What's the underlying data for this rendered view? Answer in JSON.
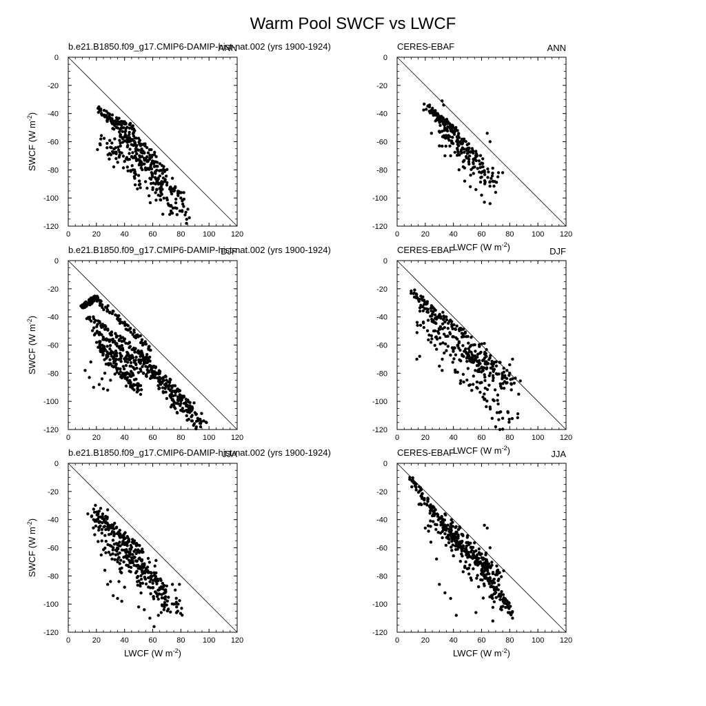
{
  "figure": {
    "title": "Warm Pool SWCF vs LWCF"
  },
  "chart_data": [
    {
      "type": "scatter",
      "left_label": "b.e21.B1850.f09_g17.CMIP6-DAMIP-hist-nat.002 (yrs 1900-1924)",
      "right_label": "ANN",
      "xlabel": "",
      "ylabel": "SWCF (W m-2)",
      "xlim": [
        0,
        120
      ],
      "ylim": [
        -120,
        0
      ],
      "x_ticks": [
        0,
        20,
        40,
        60,
        80,
        100,
        120
      ],
      "y_ticks": [
        0,
        -20,
        -40,
        -60,
        -80,
        -100,
        -120
      ],
      "reference_line": "one-to-one (SWCF = -LWCF)",
      "grid": false,
      "cloud": {
        "bands": [
          [
            21,
            -38,
            47,
            -52,
            6
          ],
          [
            28,
            -44,
            63,
            -72,
            7
          ],
          [
            36,
            -56,
            70,
            -82,
            6
          ],
          [
            45,
            -70,
            82,
            -100,
            6
          ]
        ],
        "scatter": [
          [
            25,
            -60,
            80,
            -110,
            14
          ]
        ]
      },
      "points": [
        [
          84,
          -118
        ],
        [
          86,
          -114
        ],
        [
          82,
          -106
        ],
        [
          80,
          -100
        ],
        [
          78,
          -96
        ],
        [
          76,
          -92
        ],
        [
          85,
          -108
        ],
        [
          83,
          -112
        ],
        [
          74,
          -86
        ],
        [
          40,
          -74
        ],
        [
          42,
          -78
        ],
        [
          46,
          -80
        ],
        [
          50,
          -84
        ],
        [
          34,
          -72
        ],
        [
          33,
          -58
        ],
        [
          31,
          -61
        ],
        [
          55,
          -80
        ],
        [
          58,
          -86
        ],
        [
          62,
          -90
        ],
        [
          66,
          -92
        ],
        [
          30,
          -64
        ],
        [
          38,
          -68
        ],
        [
          60,
          -94
        ],
        [
          64,
          -98
        ],
        [
          70,
          -100
        ]
      ]
    },
    {
      "type": "scatter",
      "left_label": "CERES-EBAF",
      "right_label": "ANN",
      "xlabel": "LWCF (W m-2)",
      "ylabel": "",
      "xlim": [
        0,
        120
      ],
      "ylim": [
        -120,
        0
      ],
      "x_ticks": [
        0,
        20,
        40,
        60,
        80,
        100,
        120
      ],
      "y_ticks": [
        0,
        -20,
        -40,
        -60,
        -80,
        -100,
        -120
      ],
      "reference_line": "one-to-one (SWCF = -LWCF)",
      "grid": false,
      "cloud": {
        "bands": [
          [
            20,
            -35,
            42,
            -52,
            5
          ],
          [
            26,
            -40,
            60,
            -74,
            7
          ]
        ],
        "scatter": [
          [
            30,
            -50,
            70,
            -92,
            12
          ]
        ]
      },
      "points": [
        [
          32,
          -31
        ],
        [
          33,
          -34
        ],
        [
          66,
          -104
        ],
        [
          62,
          -103
        ],
        [
          70,
          -96
        ],
        [
          72,
          -82
        ],
        [
          75,
          -82
        ],
        [
          34,
          -70
        ],
        [
          30,
          -63
        ],
        [
          38,
          -70
        ],
        [
          56,
          -94
        ],
        [
          44,
          -80
        ],
        [
          66,
          -60
        ],
        [
          64,
          -54
        ],
        [
          48,
          -88
        ],
        [
          52,
          -92
        ],
        [
          60,
          -98
        ],
        [
          68,
          -88
        ]
      ]
    },
    {
      "type": "scatter",
      "left_label": "b.e21.B1850.f09_g17.CMIP6-DAMIP-hist-nat.002 (yrs 1900-1924)",
      "right_label": "DJF",
      "xlabel": "",
      "ylabel": "SWCF (W m-2)",
      "xlim": [
        0,
        120
      ],
      "ylim": [
        -120,
        0
      ],
      "x_ticks": [
        0,
        20,
        40,
        60,
        80,
        100,
        120
      ],
      "y_ticks": [
        0,
        -20,
        -40,
        -60,
        -80,
        -100,
        -120
      ],
      "reference_line": "one-to-one (SWCF = -LWCF)",
      "grid": false,
      "cloud": {
        "bands": [
          [
            10,
            -33,
            20,
            -26,
            3
          ],
          [
            20,
            -27,
            60,
            -64,
            4
          ],
          [
            14,
            -40,
            58,
            -70,
            4
          ],
          [
            18,
            -50,
            62,
            -78,
            5
          ],
          [
            22,
            -60,
            66,
            -86,
            5
          ],
          [
            50,
            -66,
            88,
            -104,
            6
          ]
        ],
        "scatter": [
          [
            20,
            -60,
            50,
            -92,
            8
          ],
          [
            60,
            -80,
            95,
            -118,
            10
          ]
        ]
      },
      "points": [
        [
          12,
          -78
        ],
        [
          15,
          -83
        ],
        [
          18,
          -90
        ],
        [
          22,
          -88
        ],
        [
          25,
          -91
        ],
        [
          28,
          -92
        ],
        [
          30,
          -85
        ],
        [
          16,
          -72
        ],
        [
          94,
          -118
        ],
        [
          92,
          -112
        ],
        [
          88,
          -104
        ],
        [
          90,
          -108
        ],
        [
          75,
          -100
        ],
        [
          73,
          -104
        ],
        [
          26,
          -80
        ],
        [
          24,
          -84
        ],
        [
          34,
          -70
        ]
      ]
    },
    {
      "type": "scatter",
      "left_label": "CERES-EBAF",
      "right_label": "DJF",
      "xlabel": "LWCF (W m-2)",
      "ylabel": "",
      "xlim": [
        0,
        120
      ],
      "ylim": [
        -120,
        0
      ],
      "x_ticks": [
        0,
        20,
        40,
        60,
        80,
        100,
        120
      ],
      "y_ticks": [
        0,
        -20,
        -40,
        -60,
        -80,
        -100,
        -120
      ],
      "reference_line": "one-to-one (SWCF = -LWCF)",
      "grid": false,
      "cloud": {
        "bands": [
          [
            10,
            -22,
            50,
            -54,
            5
          ],
          [
            14,
            -28,
            62,
            -80,
            7
          ]
        ],
        "scatter": [
          [
            18,
            -40,
            80,
            -116,
            16
          ],
          [
            50,
            -60,
            82,
            -90,
            14
          ]
        ]
      },
      "points": [
        [
          14,
          -70
        ],
        [
          16,
          -68
        ],
        [
          28,
          -63
        ],
        [
          32,
          -78
        ],
        [
          30,
          -75
        ],
        [
          82,
          -84
        ],
        [
          80,
          -80
        ],
        [
          78,
          -78
        ],
        [
          73,
          -120
        ],
        [
          70,
          -118
        ],
        [
          75,
          -112
        ],
        [
          71,
          -108
        ],
        [
          66,
          -104
        ],
        [
          82,
          -70
        ],
        [
          80,
          -74
        ],
        [
          24,
          -58
        ],
        [
          26,
          -50
        ]
      ]
    },
    {
      "type": "scatter",
      "left_label": "b.e21.B1850.f09_g17.CMIP6-DAMIP-hist-nat.002 (yrs 1900-1924)",
      "right_label": "JJA",
      "xlabel": "LWCF (W m-2)",
      "ylabel": "SWCF (W m-2)",
      "xlim": [
        0,
        120
      ],
      "ylim": [
        -120,
        0
      ],
      "x_ticks": [
        0,
        20,
        40,
        60,
        80,
        100,
        120
      ],
      "y_ticks": [
        0,
        -20,
        -40,
        -60,
        -80,
        -100,
        -120
      ],
      "reference_line": "one-to-one (SWCF = -LWCF)",
      "grid": false,
      "cloud": {
        "bands": [
          [
            20,
            -38,
            52,
            -62,
            6
          ],
          [
            40,
            -60,
            70,
            -90,
            7
          ]
        ],
        "scatter": [
          [
            16,
            -34,
            60,
            -80,
            14
          ],
          [
            26,
            -60,
            78,
            -104,
            12
          ]
        ]
      },
      "points": [
        [
          61,
          -116
        ],
        [
          58,
          -110
        ],
        [
          64,
          -108
        ],
        [
          66,
          -106
        ],
        [
          68,
          -104
        ],
        [
          78,
          -100
        ],
        [
          77,
          -102
        ],
        [
          30,
          -84
        ],
        [
          32,
          -94
        ],
        [
          35,
          -96
        ],
        [
          38,
          -98
        ],
        [
          36,
          -84
        ],
        [
          40,
          -88
        ],
        [
          50,
          -102
        ],
        [
          54,
          -104
        ],
        [
          26,
          -76
        ],
        [
          28,
          -86
        ],
        [
          18,
          -40
        ],
        [
          22,
          -34
        ],
        [
          28,
          -33
        ],
        [
          76,
          -90
        ],
        [
          74,
          -86
        ],
        [
          79,
          -86
        ]
      ]
    },
    {
      "type": "scatter",
      "left_label": "CERES-EBAF",
      "right_label": "JJA",
      "xlabel": "LWCF (W m-2)",
      "ylabel": "",
      "xlim": [
        0,
        120
      ],
      "ylim": [
        -120,
        0
      ],
      "x_ticks": [
        0,
        20,
        40,
        60,
        80,
        100,
        120
      ],
      "y_ticks": [
        0,
        -20,
        -40,
        -60,
        -80,
        -100,
        -120
      ],
      "reference_line": "one-to-one (SWCF = -LWCF)",
      "grid": false,
      "cloud": {
        "bands": [
          [
            10,
            -12,
            40,
            -52,
            5
          ],
          [
            36,
            -50,
            64,
            -76,
            6
          ],
          [
            60,
            -76,
            82,
            -106,
            5
          ]
        ],
        "scatter": [
          [
            20,
            -30,
            75,
            -100,
            14
          ],
          [
            35,
            -44,
            72,
            -80,
            10
          ]
        ]
      },
      "points": [
        [
          9,
          -10
        ],
        [
          12,
          -14
        ],
        [
          42,
          -108
        ],
        [
          56,
          -106
        ],
        [
          68,
          -112
        ],
        [
          74,
          -102
        ],
        [
          82,
          -110
        ],
        [
          80,
          -106
        ],
        [
          78,
          -100
        ],
        [
          30,
          -86
        ],
        [
          34,
          -92
        ],
        [
          38,
          -96
        ],
        [
          28,
          -68
        ],
        [
          24,
          -56
        ],
        [
          20,
          -46
        ],
        [
          66,
          -60
        ],
        [
          62,
          -44
        ],
        [
          64,
          -46
        ]
      ]
    }
  ]
}
